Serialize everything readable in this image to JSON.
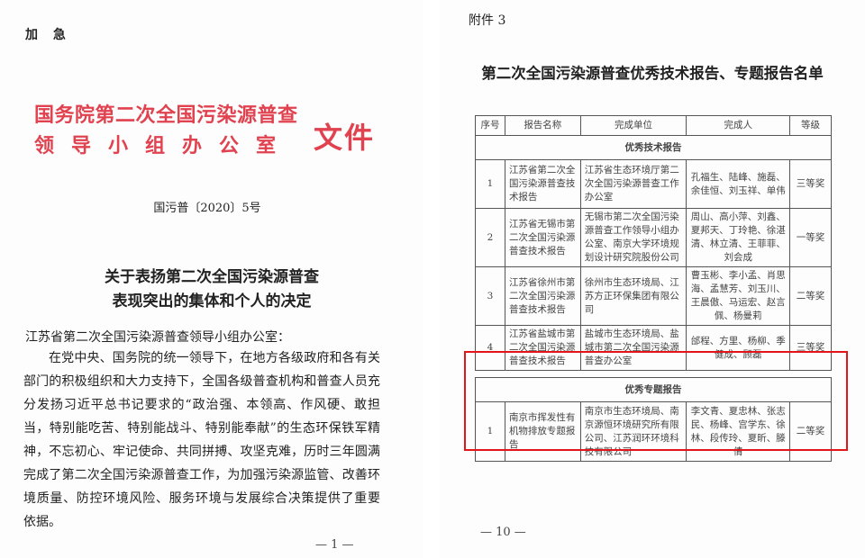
{
  "left_page": {
    "urgent": "加 急",
    "issuer_line1": "国务院第二次全国污染源普查",
    "issuer_line2": "领导小组办公室",
    "issuer_suffix": "文件",
    "doc_number": "国污普〔2020〕5号",
    "title_line1": "关于表扬第二次全国污染源普查",
    "title_line2": "表现突出的集体和个人的决定",
    "addressee": "江苏省第二次全国污染源普查领导小组办公室：",
    "body_lines": [
      "在党中央、国务院的统一领导下，在地方各级政府和各有关",
      "部门的积极组织和大力支持下，全国各级普查机构和普查人员充",
      "分发扬习近平总书记要求的“政治强、本领高、作风硬、敢担",
      "当，特别能吃苦、特别能战斗、特别能奉献”的生态环保铁军精",
      "神，不忘初心、牢记使命、共同拼搏、攻坚克难，历时三年圆满",
      "完成了第二次全国污染源普查工作，为加强污染源监管、改善环",
      "境质量、防控环境风险、服务环境与发展综合决策提供了重要",
      "依据。"
    ],
    "page_number": "— 1 —"
  },
  "right_page": {
    "attachment": "附件 3",
    "title": "第二次全国污染源普查优秀技术报告、专题报告名单",
    "table": {
      "headers": [
        "序号",
        "报告名称",
        "完成单位",
        "完成人",
        "等级"
      ],
      "sections": [
        {
          "label": "优秀技术报告",
          "rows": [
            [
              "1",
              "江苏省第二次全国污染源普查技术报告",
              "江苏省生态环境厅第二次全国污染源普查工作办公室",
              "孔福生、陆峰、施磊、余佳恒、刘玉祥、单伟",
              "三等奖"
            ],
            [
              "2",
              "江苏省无锡市第二次全国污染源普查技术报告",
              "无锡市第二次全国污染源普查工作领导小组办公室、南京大学环境规划设计研究院股份公司",
              "周山、高小萍、刘鑫、夏邦天、丁玲艳、徐湛清、林立清、王菲菲、刘会成",
              "一等奖"
            ],
            [
              "3",
              "江苏省徐州市第二次全国污染源普查技术报告",
              "徐州市生态环境局、江苏方正环保集团有限公司",
              "曹玉彬、李小孟、肖思海、孟慧芳、刘玉川、王晨傲、马运宏、赵言佩、杨曼莉",
              "二等奖"
            ],
            [
              "4",
              "江苏省盐城市第二次全国污染源普查技术报告",
              "盐城市生态环境局、盐城市第二次全国污染源普查办公室",
              "邰程、方里、杨柳、季健成、顾磊",
              "三等奖"
            ]
          ]
        },
        {
          "label": "优秀专题报告",
          "rows": [
            [
              "1",
              "南京市挥发性有机物排放专题报告",
              "南京市生态环境局、南京源恒环境研究所有限公司、江苏润环环境科技有限公司",
              "李文青、夏忠林、张志民、杨峰、宫学东、徐林、段传玲、夏昕、滕倩",
              "二等奖"
            ]
          ]
        }
      ]
    },
    "page_number": "— 10 —",
    "highlight_color": "#e3151b"
  }
}
